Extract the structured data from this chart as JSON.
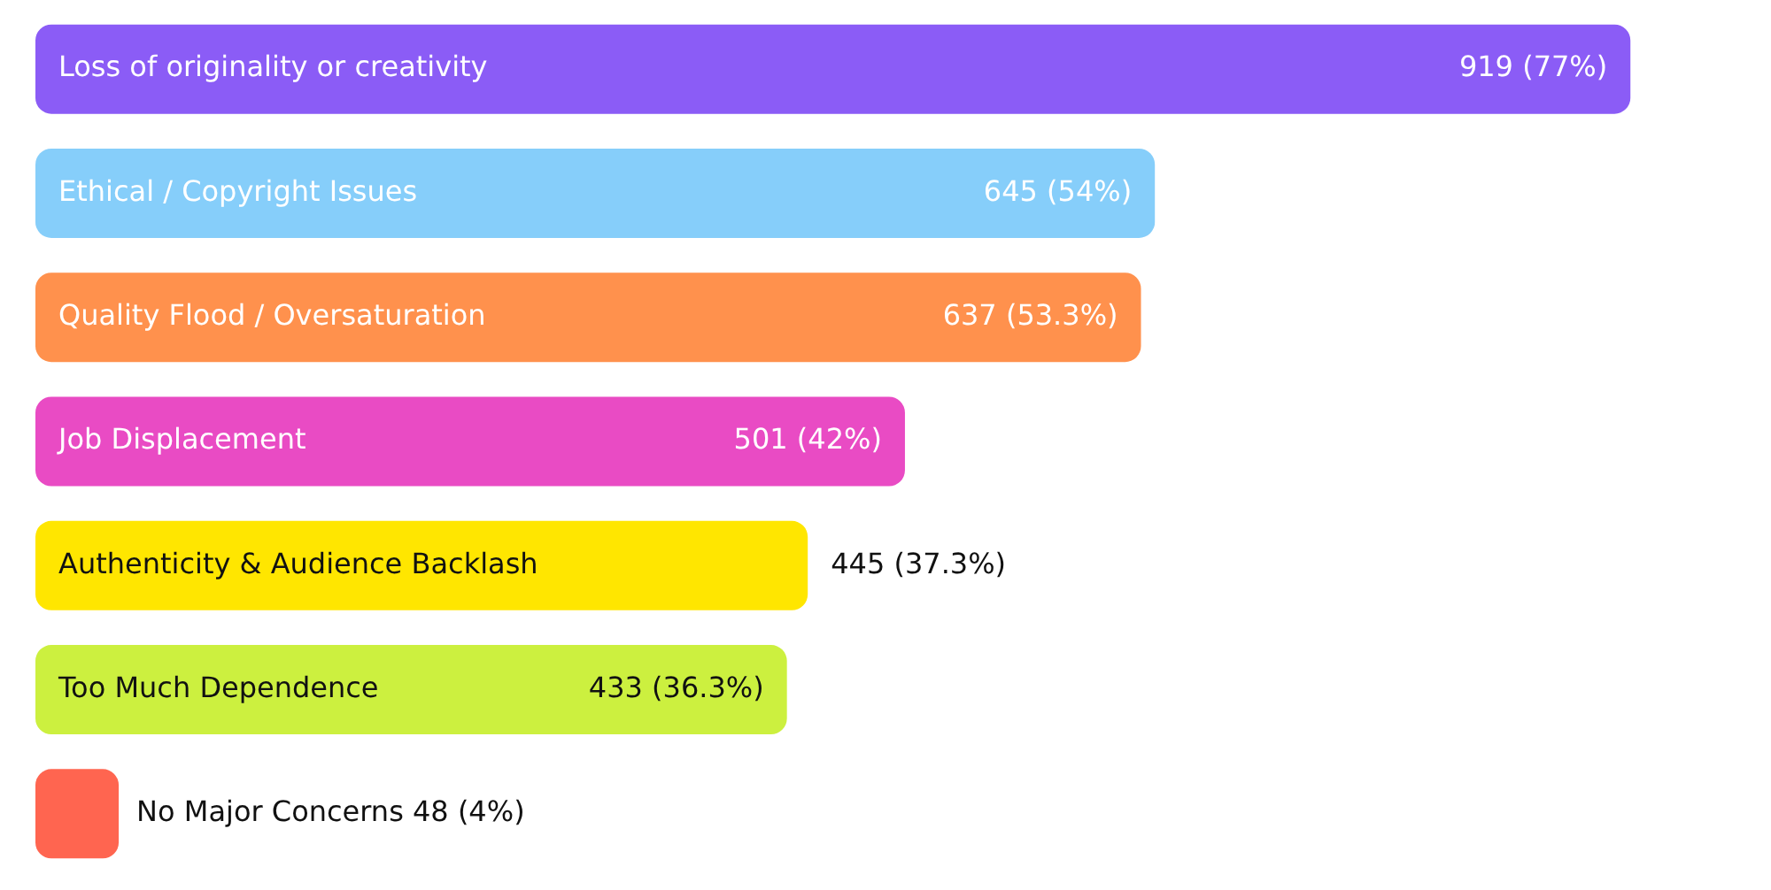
{
  "chart_data": {
    "type": "bar",
    "orientation": "horizontal",
    "categories": [
      "Loss of originality or creativity",
      "Ethical / Copyright Issues",
      "Quality Flood / Oversaturation",
      "Job Displacement",
      "Authenticity & Audience Backlash",
      "Too Much Dependence",
      "No Major Concerns"
    ],
    "values": [
      919,
      645,
      637,
      501,
      445,
      433,
      48
    ],
    "colors": [
      "#8b5cf6",
      "#86cefa",
      "#ff914d",
      "#e94bc4",
      "#ffe600",
      "#ccf03f",
      "#ff6550"
    ],
    "value_labels": [
      "919 (77%)",
      "645 (54%)",
      "637 (53.3%)",
      "501 (42%)",
      "445 (37.3%)",
      "433 (36.3%)",
      "48 (4%)"
    ],
    "legend": false
  }
}
